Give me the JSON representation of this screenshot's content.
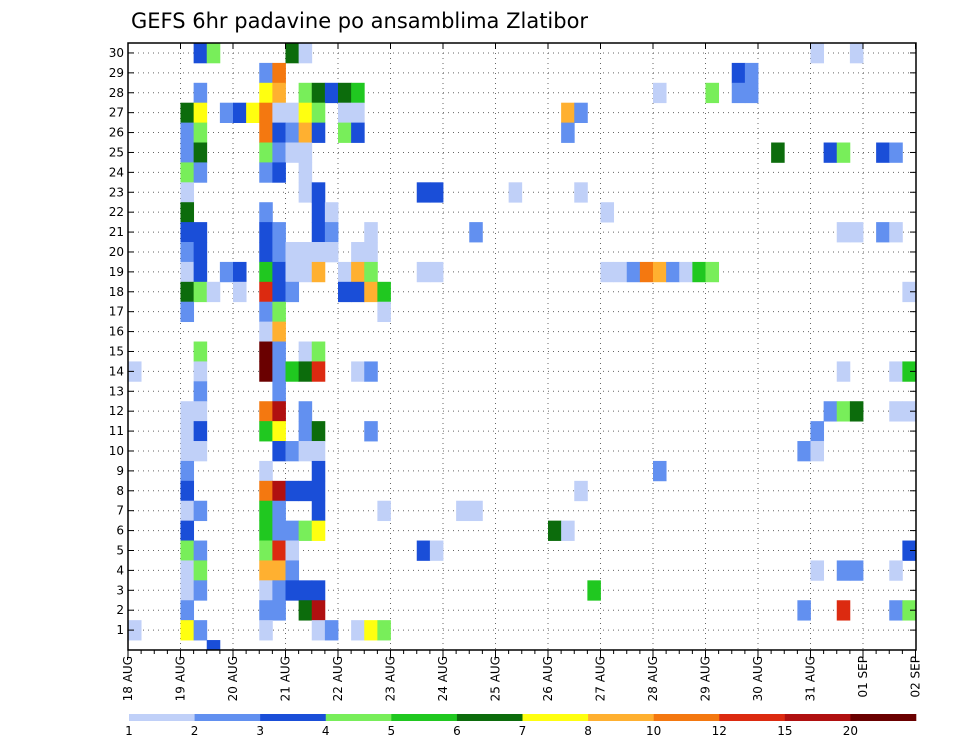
{
  "chart_data": {
    "type": "heatmap",
    "title": "GEFS 6hr padavine po ansamblima Zlatibor",
    "xlabel": "",
    "ylabel": "",
    "x_ticks": [
      "18 AUG",
      "19 AUG",
      "20 AUG",
      "21 AUG",
      "22 AUG",
      "23 AUG",
      "24 AUG",
      "25 AUG",
      "26 AUG",
      "27 AUG",
      "28 AUG",
      "29 AUG",
      "30 AUG",
      "31 AUG",
      "01 SEP",
      "02 SEP"
    ],
    "y_ticks": [
      "1",
      "2",
      "3",
      "4",
      "5",
      "6",
      "7",
      "8",
      "9",
      "10",
      "11",
      "12",
      "13",
      "14",
      "15",
      "16",
      "17",
      "18",
      "19",
      "20",
      "21",
      "22",
      "23",
      "24",
      "25",
      "26",
      "27",
      "28",
      "29",
      "30"
    ],
    "x_range": [
      "18 AUG 00Z",
      "02 SEP 00Z"
    ],
    "time_step_hours": 6,
    "y_range": [
      1,
      30
    ],
    "grid": true,
    "colorbar": {
      "placement": "bottom",
      "levels": [
        "1",
        "2",
        "3",
        "4",
        "5",
        "6",
        "7",
        "8",
        "10",
        "12",
        "15",
        "20"
      ],
      "colors": [
        "#c0d0f8",
        "#6290f0",
        "#1a4ed8",
        "#78ee5a",
        "#20c820",
        "#0c6c0c",
        "#ffff10",
        "#ffb030",
        "#f47810",
        "#dc2a10",
        "#b01010",
        "#6a0000"
      ]
    },
    "cells": [
      {
        "m": 30,
        "t": 5,
        "c": 2
      },
      {
        "m": 30,
        "t": 6,
        "c": 3
      },
      {
        "m": 30,
        "t": 12,
        "c": 5
      },
      {
        "m": 30,
        "t": 13,
        "c": 0
      },
      {
        "m": 30,
        "t": 52,
        "c": 0
      },
      {
        "m": 30,
        "t": 55,
        "c": 0
      },
      {
        "m": 29,
        "t": 10,
        "c": 1
      },
      {
        "m": 29,
        "t": 11,
        "c": 8
      },
      {
        "m": 29,
        "t": 46,
        "c": 2
      },
      {
        "m": 29,
        "t": 47,
        "c": 1
      },
      {
        "m": 28,
        "t": 5,
        "c": 1
      },
      {
        "m": 28,
        "t": 10,
        "c": 6
      },
      {
        "m": 28,
        "t": 11,
        "c": 7
      },
      {
        "m": 28,
        "t": 13,
        "c": 3
      },
      {
        "m": 28,
        "t": 14,
        "c": 5
      },
      {
        "m": 28,
        "t": 15,
        "c": 2
      },
      {
        "m": 28,
        "t": 16,
        "c": 5
      },
      {
        "m": 28,
        "t": 17,
        "c": 4
      },
      {
        "m": 28,
        "t": 40,
        "c": 0
      },
      {
        "m": 28,
        "t": 44,
        "c": 3
      },
      {
        "m": 28,
        "t": 46,
        "c": 1
      },
      {
        "m": 28,
        "t": 47,
        "c": 1
      },
      {
        "m": 27,
        "t": 4,
        "c": 5
      },
      {
        "m": 27,
        "t": 5,
        "c": 6
      },
      {
        "m": 27,
        "t": 7,
        "c": 1
      },
      {
        "m": 27,
        "t": 8,
        "c": 2
      },
      {
        "m": 27,
        "t": 9,
        "c": 6
      },
      {
        "m": 27,
        "t": 10,
        "c": 8
      },
      {
        "m": 27,
        "t": 11,
        "c": 0
      },
      {
        "m": 27,
        "t": 12,
        "c": 0
      },
      {
        "m": 27,
        "t": 13,
        "c": 6
      },
      {
        "m": 27,
        "t": 14,
        "c": 3
      },
      {
        "m": 27,
        "t": 16,
        "c": 0
      },
      {
        "m": 27,
        "t": 17,
        "c": 0
      },
      {
        "m": 27,
        "t": 33,
        "c": 7
      },
      {
        "m": 27,
        "t": 34,
        "c": 1
      },
      {
        "m": 26,
        "t": 4,
        "c": 1
      },
      {
        "m": 26,
        "t": 5,
        "c": 3
      },
      {
        "m": 26,
        "t": 10,
        "c": 8
      },
      {
        "m": 26,
        "t": 11,
        "c": 2
      },
      {
        "m": 26,
        "t": 12,
        "c": 1
      },
      {
        "m": 26,
        "t": 13,
        "c": 7
      },
      {
        "m": 26,
        "t": 14,
        "c": 2
      },
      {
        "m": 26,
        "t": 16,
        "c": 3
      },
      {
        "m": 26,
        "t": 17,
        "c": 2
      },
      {
        "m": 26,
        "t": 33,
        "c": 1
      },
      {
        "m": 25,
        "t": 4,
        "c": 1
      },
      {
        "m": 25,
        "t": 5,
        "c": 5
      },
      {
        "m": 25,
        "t": 10,
        "c": 3
      },
      {
        "m": 25,
        "t": 11,
        "c": 1
      },
      {
        "m": 25,
        "t": 12,
        "c": 0
      },
      {
        "m": 25,
        "t": 13,
        "c": 0
      },
      {
        "m": 25,
        "t": 49,
        "c": 5
      },
      {
        "m": 25,
        "t": 53,
        "c": 2
      },
      {
        "m": 25,
        "t": 54,
        "c": 3
      },
      {
        "m": 25,
        "t": 57,
        "c": 2
      },
      {
        "m": 25,
        "t": 58,
        "c": 1
      },
      {
        "m": 24,
        "t": 4,
        "c": 3
      },
      {
        "m": 24,
        "t": 5,
        "c": 1
      },
      {
        "m": 24,
        "t": 10,
        "c": 1
      },
      {
        "m": 24,
        "t": 11,
        "c": 2
      },
      {
        "m": 24,
        "t": 13,
        "c": 0
      },
      {
        "m": 23,
        "t": 4,
        "c": 0
      },
      {
        "m": 23,
        "t": 13,
        "c": 0
      },
      {
        "m": 23,
        "t": 14,
        "c": 2
      },
      {
        "m": 23,
        "t": 22,
        "c": 2
      },
      {
        "m": 23,
        "t": 23,
        "c": 2
      },
      {
        "m": 23,
        "t": 29,
        "c": 0
      },
      {
        "m": 23,
        "t": 34,
        "c": 0
      },
      {
        "m": 22,
        "t": 4,
        "c": 5
      },
      {
        "m": 22,
        "t": 10,
        "c": 1
      },
      {
        "m": 22,
        "t": 14,
        "c": 2
      },
      {
        "m": 22,
        "t": 15,
        "c": 0
      },
      {
        "m": 22,
        "t": 36,
        "c": 0
      },
      {
        "m": 21,
        "t": 4,
        "c": 2
      },
      {
        "m": 21,
        "t": 5,
        "c": 2
      },
      {
        "m": 21,
        "t": 10,
        "c": 2
      },
      {
        "m": 21,
        "t": 11,
        "c": 1
      },
      {
        "m": 21,
        "t": 14,
        "c": 2
      },
      {
        "m": 21,
        "t": 15,
        "c": 1
      },
      {
        "m": 21,
        "t": 18,
        "c": 0
      },
      {
        "m": 21,
        "t": 26,
        "c": 1
      },
      {
        "m": 21,
        "t": 54,
        "c": 0
      },
      {
        "m": 21,
        "t": 55,
        "c": 0
      },
      {
        "m": 21,
        "t": 57,
        "c": 1
      },
      {
        "m": 21,
        "t": 58,
        "c": 0
      },
      {
        "m": 20,
        "t": 4,
        "c": 1
      },
      {
        "m": 20,
        "t": 5,
        "c": 2
      },
      {
        "m": 20,
        "t": 10,
        "c": 2
      },
      {
        "m": 20,
        "t": 11,
        "c": 1
      },
      {
        "m": 20,
        "t": 12,
        "c": 0
      },
      {
        "m": 20,
        "t": 13,
        "c": 0
      },
      {
        "m": 20,
        "t": 14,
        "c": 0
      },
      {
        "m": 20,
        "t": 15,
        "c": 0
      },
      {
        "m": 20,
        "t": 17,
        "c": 0
      },
      {
        "m": 20,
        "t": 18,
        "c": 0
      },
      {
        "m": 19,
        "t": 4,
        "c": 0
      },
      {
        "m": 19,
        "t": 5,
        "c": 2
      },
      {
        "m": 19,
        "t": 7,
        "c": 1
      },
      {
        "m": 19,
        "t": 8,
        "c": 2
      },
      {
        "m": 19,
        "t": 10,
        "c": 4
      },
      {
        "m": 19,
        "t": 11,
        "c": 2
      },
      {
        "m": 19,
        "t": 12,
        "c": 0
      },
      {
        "m": 19,
        "t": 13,
        "c": 0
      },
      {
        "m": 19,
        "t": 14,
        "c": 7
      },
      {
        "m": 19,
        "t": 16,
        "c": 0
      },
      {
        "m": 19,
        "t": 17,
        "c": 7
      },
      {
        "m": 19,
        "t": 18,
        "c": 3
      },
      {
        "m": 19,
        "t": 22,
        "c": 0
      },
      {
        "m": 19,
        "t": 23,
        "c": 0
      },
      {
        "m": 19,
        "t": 36,
        "c": 0
      },
      {
        "m": 19,
        "t": 37,
        "c": 0
      },
      {
        "m": 19,
        "t": 38,
        "c": 1
      },
      {
        "m": 19,
        "t": 39,
        "c": 8
      },
      {
        "m": 19,
        "t": 40,
        "c": 7
      },
      {
        "m": 19,
        "t": 41,
        "c": 1
      },
      {
        "m": 19,
        "t": 42,
        "c": 0
      },
      {
        "m": 19,
        "t": 43,
        "c": 4
      },
      {
        "m": 19,
        "t": 44,
        "c": 3
      },
      {
        "m": 18,
        "t": 4,
        "c": 5
      },
      {
        "m": 18,
        "t": 5,
        "c": 3
      },
      {
        "m": 18,
        "t": 6,
        "c": 0
      },
      {
        "m": 18,
        "t": 8,
        "c": 0
      },
      {
        "m": 18,
        "t": 10,
        "c": 9
      },
      {
        "m": 18,
        "t": 11,
        "c": 2
      },
      {
        "m": 18,
        "t": 12,
        "c": 1
      },
      {
        "m": 18,
        "t": 16,
        "c": 2
      },
      {
        "m": 18,
        "t": 17,
        "c": 2
      },
      {
        "m": 18,
        "t": 18,
        "c": 7
      },
      {
        "m": 18,
        "t": 19,
        "c": 4
      },
      {
        "m": 18,
        "t": 59,
        "c": 0
      },
      {
        "m": 17,
        "t": 4,
        "c": 1
      },
      {
        "m": 17,
        "t": 10,
        "c": 1
      },
      {
        "m": 17,
        "t": 11,
        "c": 3
      },
      {
        "m": 17,
        "t": 19,
        "c": 0
      },
      {
        "m": 16,
        "t": 10,
        "c": 0
      },
      {
        "m": 16,
        "t": 11,
        "c": 7
      },
      {
        "m": 15,
        "t": 5,
        "c": 3
      },
      {
        "m": 15,
        "t": 10,
        "c": 11
      },
      {
        "m": 15,
        "t": 11,
        "c": 1
      },
      {
        "m": 15,
        "t": 13,
        "c": 0
      },
      {
        "m": 15,
        "t": 14,
        "c": 3
      },
      {
        "m": 14,
        "t": 0,
        "c": 0
      },
      {
        "m": 14,
        "t": 5,
        "c": 0
      },
      {
        "m": 14,
        "t": 10,
        "c": 11
      },
      {
        "m": 14,
        "t": 11,
        "c": 1
      },
      {
        "m": 14,
        "t": 12,
        "c": 4
      },
      {
        "m": 14,
        "t": 13,
        "c": 5
      },
      {
        "m": 14,
        "t": 14,
        "c": 9
      },
      {
        "m": 14,
        "t": 17,
        "c": 0
      },
      {
        "m": 14,
        "t": 18,
        "c": 1
      },
      {
        "m": 14,
        "t": 54,
        "c": 0
      },
      {
        "m": 14,
        "t": 58,
        "c": 0
      },
      {
        "m": 14,
        "t": 59,
        "c": 4
      },
      {
        "m": 13,
        "t": 5,
        "c": 1
      },
      {
        "m": 13,
        "t": 11,
        "c": 1
      },
      {
        "m": 12,
        "t": 4,
        "c": 0
      },
      {
        "m": 12,
        "t": 5,
        "c": 0
      },
      {
        "m": 12,
        "t": 10,
        "c": 8
      },
      {
        "m": 12,
        "t": 11,
        "c": 10
      },
      {
        "m": 12,
        "t": 13,
        "c": 1
      },
      {
        "m": 12,
        "t": 53,
        "c": 1
      },
      {
        "m": 12,
        "t": 54,
        "c": 3
      },
      {
        "m": 12,
        "t": 55,
        "c": 5
      },
      {
        "m": 12,
        "t": 58,
        "c": 0
      },
      {
        "m": 12,
        "t": 59,
        "c": 0
      },
      {
        "m": 11,
        "t": 4,
        "c": 0
      },
      {
        "m": 11,
        "t": 5,
        "c": 2
      },
      {
        "m": 11,
        "t": 10,
        "c": 4
      },
      {
        "m": 11,
        "t": 11,
        "c": 6
      },
      {
        "m": 11,
        "t": 13,
        "c": 1
      },
      {
        "m": 11,
        "t": 14,
        "c": 5
      },
      {
        "m": 11,
        "t": 18,
        "c": 1
      },
      {
        "m": 11,
        "t": 52,
        "c": 1
      },
      {
        "m": 10,
        "t": 4,
        "c": 0
      },
      {
        "m": 10,
        "t": 5,
        "c": 0
      },
      {
        "m": 10,
        "t": 11,
        "c": 2
      },
      {
        "m": 10,
        "t": 12,
        "c": 1
      },
      {
        "m": 10,
        "t": 13,
        "c": 0
      },
      {
        "m": 10,
        "t": 14,
        "c": 0
      },
      {
        "m": 10,
        "t": 51,
        "c": 1
      },
      {
        "m": 10,
        "t": 52,
        "c": 0
      },
      {
        "m": 9,
        "t": 4,
        "c": 1
      },
      {
        "m": 9,
        "t": 10,
        "c": 0
      },
      {
        "m": 9,
        "t": 14,
        "c": 2
      },
      {
        "m": 9,
        "t": 40,
        "c": 1
      },
      {
        "m": 8,
        "t": 4,
        "c": 2
      },
      {
        "m": 8,
        "t": 10,
        "c": 8
      },
      {
        "m": 8,
        "t": 11,
        "c": 10
      },
      {
        "m": 8,
        "t": 12,
        "c": 2
      },
      {
        "m": 8,
        "t": 13,
        "c": 2
      },
      {
        "m": 8,
        "t": 14,
        "c": 2
      },
      {
        "m": 8,
        "t": 34,
        "c": 0
      },
      {
        "m": 7,
        "t": 4,
        "c": 0
      },
      {
        "m": 7,
        "t": 5,
        "c": 1
      },
      {
        "m": 7,
        "t": 10,
        "c": 4
      },
      {
        "m": 7,
        "t": 11,
        "c": 1
      },
      {
        "m": 7,
        "t": 14,
        "c": 2
      },
      {
        "m": 7,
        "t": 19,
        "c": 0
      },
      {
        "m": 7,
        "t": 25,
        "c": 0
      },
      {
        "m": 7,
        "t": 26,
        "c": 0
      },
      {
        "m": 6,
        "t": 4,
        "c": 2
      },
      {
        "m": 6,
        "t": 10,
        "c": 4
      },
      {
        "m": 6,
        "t": 11,
        "c": 1
      },
      {
        "m": 6,
        "t": 12,
        "c": 1
      },
      {
        "m": 6,
        "t": 13,
        "c": 3
      },
      {
        "m": 6,
        "t": 14,
        "c": 6
      },
      {
        "m": 6,
        "t": 32,
        "c": 5
      },
      {
        "m": 6,
        "t": 33,
        "c": 0
      },
      {
        "m": 5,
        "t": 4,
        "c": 3
      },
      {
        "m": 5,
        "t": 5,
        "c": 1
      },
      {
        "m": 5,
        "t": 10,
        "c": 3
      },
      {
        "m": 5,
        "t": 11,
        "c": 9
      },
      {
        "m": 5,
        "t": 12,
        "c": 0
      },
      {
        "m": 5,
        "t": 22,
        "c": 2
      },
      {
        "m": 5,
        "t": 23,
        "c": 0
      },
      {
        "m": 5,
        "t": 59,
        "c": 2
      },
      {
        "m": 4,
        "t": 4,
        "c": 0
      },
      {
        "m": 4,
        "t": 5,
        "c": 3
      },
      {
        "m": 4,
        "t": 10,
        "c": 7
      },
      {
        "m": 4,
        "t": 11,
        "c": 7
      },
      {
        "m": 4,
        "t": 12,
        "c": 1
      },
      {
        "m": 4,
        "t": 52,
        "c": 0
      },
      {
        "m": 4,
        "t": 54,
        "c": 1
      },
      {
        "m": 4,
        "t": 55,
        "c": 1
      },
      {
        "m": 4,
        "t": 58,
        "c": 0
      },
      {
        "m": 3,
        "t": 4,
        "c": 0
      },
      {
        "m": 3,
        "t": 5,
        "c": 1
      },
      {
        "m": 3,
        "t": 10,
        "c": 0
      },
      {
        "m": 3,
        "t": 11,
        "c": 1
      },
      {
        "m": 3,
        "t": 12,
        "c": 2
      },
      {
        "m": 3,
        "t": 13,
        "c": 2
      },
      {
        "m": 3,
        "t": 14,
        "c": 2
      },
      {
        "m": 3,
        "t": 35,
        "c": 4
      },
      {
        "m": 2,
        "t": 4,
        "c": 1
      },
      {
        "m": 2,
        "t": 10,
        "c": 1
      },
      {
        "m": 2,
        "t": 11,
        "c": 1
      },
      {
        "m": 2,
        "t": 13,
        "c": 5
      },
      {
        "m": 2,
        "t": 14,
        "c": 10
      },
      {
        "m": 2,
        "t": 51,
        "c": 1
      },
      {
        "m": 2,
        "t": 54,
        "c": 9
      },
      {
        "m": 2,
        "t": 58,
        "c": 1
      },
      {
        "m": 2,
        "t": 59,
        "c": 3
      },
      {
        "m": 1,
        "t": 0,
        "c": 0
      },
      {
        "m": 1,
        "t": 4,
        "c": 6
      },
      {
        "m": 1,
        "t": 5,
        "c": 1
      },
      {
        "m": 1,
        "t": 10,
        "c": 0
      },
      {
        "m": 1,
        "t": 14,
        "c": 0
      },
      {
        "m": 1,
        "t": 15,
        "c": 1
      },
      {
        "m": 1,
        "t": 17,
        "c": 0
      },
      {
        "m": 1,
        "t": 18,
        "c": 6
      },
      {
        "m": 1,
        "t": 19,
        "c": 3
      },
      {
        "m": 0,
        "t": 6,
        "c": 2
      }
    ]
  }
}
